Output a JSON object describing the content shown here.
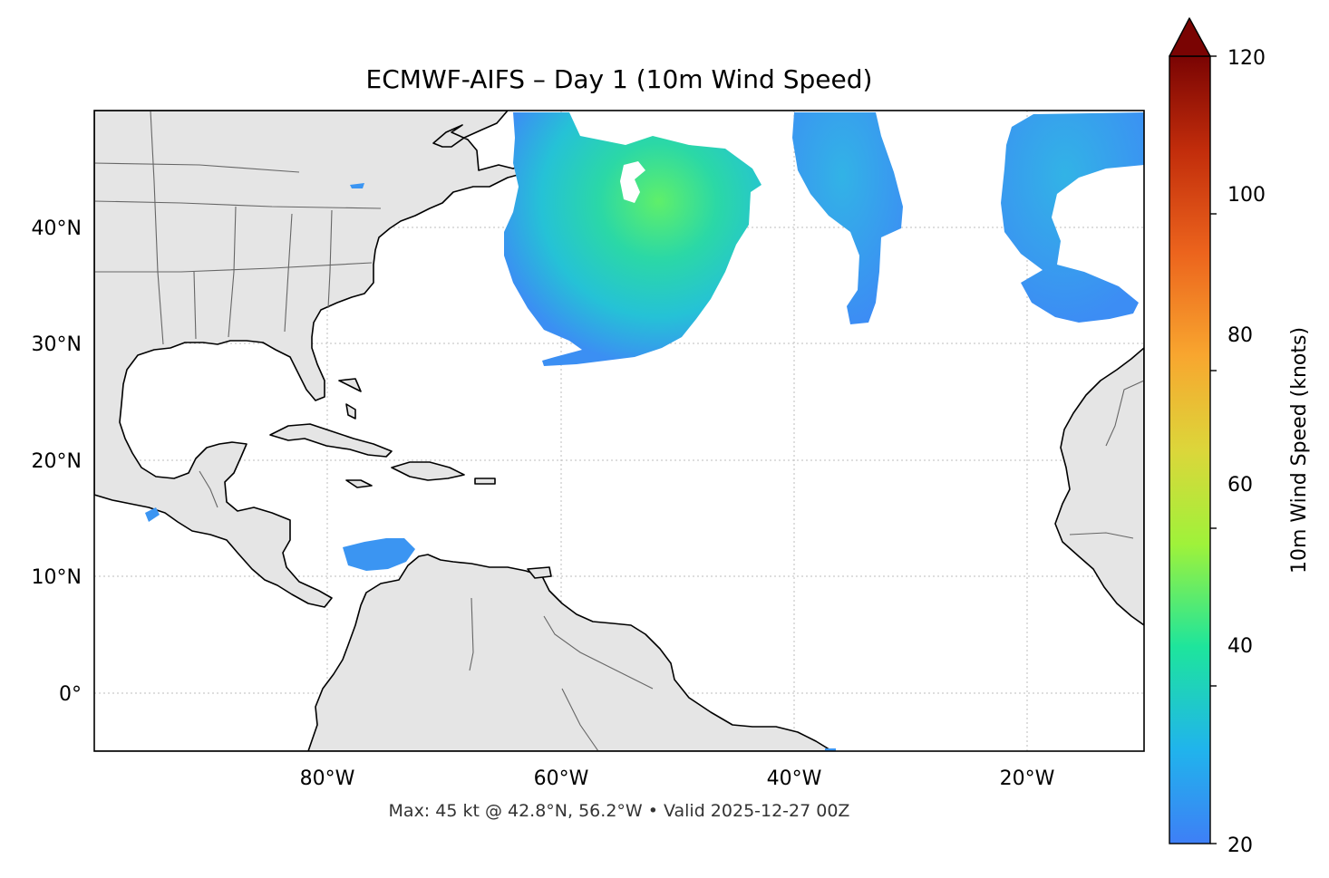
{
  "title": "ECMWF-AIFS – Day 1 (10m Wind Speed)",
  "subtitle": "Max: 45 kt @ 42.8°N, 56.2°W • Valid 2025-12-27 00Z",
  "map": {
    "lon_range": [
      -100,
      -10
    ],
    "lat_range": [
      -5,
      50
    ],
    "lat_ticks": [
      {
        "value": 40,
        "label": "40°N"
      },
      {
        "value": 30,
        "label": "30°N"
      },
      {
        "value": 20,
        "label": "20°N"
      },
      {
        "value": 10,
        "label": "10°N"
      },
      {
        "value": 0,
        "label": "0°"
      }
    ],
    "lon_ticks": [
      {
        "value": -80,
        "label": "80°W"
      },
      {
        "value": -60,
        "label": "60°W"
      },
      {
        "value": -40,
        "label": "40°W"
      },
      {
        "value": -20,
        "label": "20°W"
      }
    ],
    "gridlines": true,
    "land_color": "#e5e5e5",
    "max_wind": {
      "kt": 45,
      "lat": 42.8,
      "lon": -56.2
    }
  },
  "colorbar": {
    "label": "10m Wind Speed (knots)",
    "range": [
      20,
      120
    ],
    "extend": "max",
    "ticks": [
      {
        "value": 20,
        "label": "20"
      },
      {
        "value": 40,
        "label": "40"
      },
      {
        "value": 60,
        "label": "60"
      },
      {
        "value": 80,
        "label": "80"
      },
      {
        "value": 100,
        "label": "100"
      },
      {
        "value": 120,
        "label": "120"
      }
    ],
    "colors": [
      "#3b82f6",
      "#1fb8ee",
      "#1ee8a0",
      "#a6f53a",
      "#dfd43a",
      "#f8a12f",
      "#e7531c",
      "#b8220a",
      "#7a0403"
    ]
  }
}
